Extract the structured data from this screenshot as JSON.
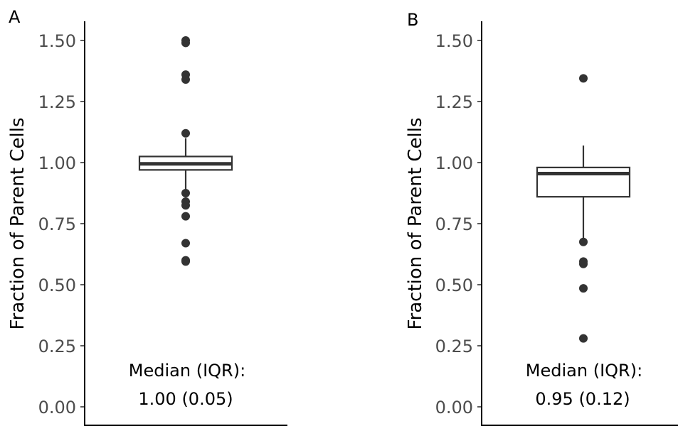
{
  "chart_data": [
    {
      "type": "box",
      "panel_label": "A",
      "ylabel": "Fraction of Parent Cells",
      "ylim": [
        0,
        1.57
      ],
      "yticks": [
        "0.00",
        "0.25",
        "0.50",
        "0.75",
        "1.00",
        "1.25",
        "1.50"
      ],
      "ytick_values": [
        0,
        0.25,
        0.5,
        0.75,
        1.0,
        1.25,
        1.5
      ],
      "box": {
        "q1": 0.97,
        "median": 0.995,
        "q3": 1.025,
        "whisker_low": 0.89,
        "whisker_high": 1.1
      },
      "outliers": [
        1.5,
        1.49,
        1.36,
        1.34,
        1.12,
        0.875,
        0.84,
        0.825,
        0.78,
        0.67,
        0.6,
        0.595
      ],
      "annotation_line1": "Median (IQR):",
      "annotation_line2": "1.00 (0.05)",
      "grid": false
    },
    {
      "type": "box",
      "panel_label": "B",
      "ylabel": "Fraction of Parent Cells",
      "ylim": [
        0,
        1.57
      ],
      "yticks": [
        "0.00",
        "0.25",
        "0.50",
        "0.75",
        "1.00",
        "1.25",
        "1.50"
      ],
      "ytick_values": [
        0,
        0.25,
        0.5,
        0.75,
        1.0,
        1.25,
        1.5
      ],
      "box": {
        "q1": 0.86,
        "median": 0.955,
        "q3": 0.98,
        "whisker_low": 0.69,
        "whisker_high": 1.07
      },
      "outliers": [
        1.345,
        0.675,
        0.595,
        0.585,
        0.485,
        0.28
      ],
      "annotation_line1": "Median (IQR):",
      "annotation_line2": "0.95 (0.12)",
      "grid": false
    }
  ]
}
